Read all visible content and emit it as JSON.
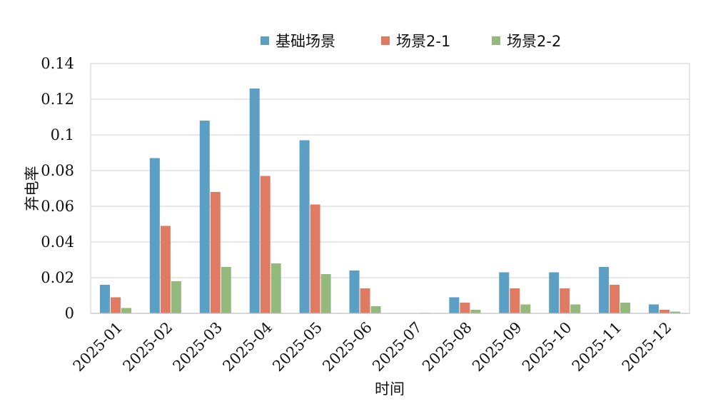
{
  "chart_data": {
    "type": "bar",
    "categories": [
      "2025-01",
      "2025-02",
      "2025-03",
      "2025-04",
      "2025-05",
      "2025-06",
      "2025-07",
      "2025-08",
      "2025-09",
      "2025-10",
      "2025-11",
      "2025-12"
    ],
    "series": [
      {
        "name": "基础场景",
        "color": "#5b9fc4",
        "values": [
          0.016,
          0.087,
          0.108,
          0.126,
          0.097,
          0.024,
          0.0,
          0.009,
          0.023,
          0.023,
          0.026,
          0.005
        ]
      },
      {
        "name": "场景2-1",
        "color": "#e07b63",
        "values": [
          0.009,
          0.049,
          0.068,
          0.077,
          0.061,
          0.014,
          0.0,
          0.006,
          0.014,
          0.014,
          0.016,
          0.002
        ]
      },
      {
        "name": "场景2-2",
        "color": "#93b97c",
        "values": [
          0.003,
          0.018,
          0.026,
          0.028,
          0.022,
          0.004,
          0.0003,
          0.002,
          0.005,
          0.005,
          0.006,
          0.001
        ]
      }
    ],
    "xlabel": "时间",
    "ylabel": "弃电率",
    "ylim": [
      0,
      0.14
    ],
    "yticks": [
      "0",
      "0.02",
      "0.04",
      "0.06",
      "0.08",
      "0.1",
      "0.12",
      "0.14"
    ],
    "grid": true,
    "legend_position": "top"
  }
}
